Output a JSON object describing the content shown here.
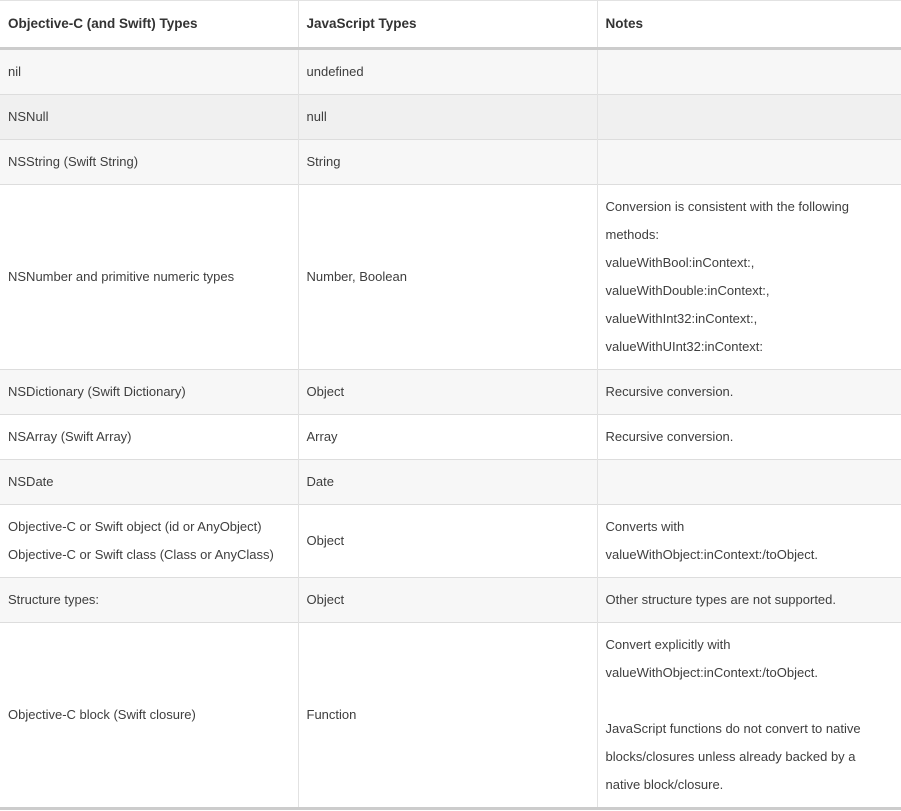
{
  "colors": {
    "header_bg": "#ffffff",
    "header_text": "#333333",
    "body_text": "#3e3e3e",
    "row_shaded_bg": "#f7f7f7",
    "row_highlighted_bg": "#f0f0f0",
    "row_plain_bg": "#ffffff",
    "grid_line": "#e2e2e2",
    "row_divider": "#dddddd",
    "header_border": "#cccccc",
    "table_bottom_border": "#cccccc"
  },
  "table": {
    "columns": [
      {
        "label": "Objective-C (and Swift) Types"
      },
      {
        "label": "JavaScript Types"
      },
      {
        "label": "Notes"
      }
    ],
    "rows": [
      {
        "state": "shaded",
        "objc": [
          "nil"
        ],
        "js": "undefined",
        "notes": []
      },
      {
        "state": "highlighted",
        "objc": [
          "NSNull"
        ],
        "js": "null",
        "notes": []
      },
      {
        "state": "shaded",
        "objc": [
          "NSString (Swift String)"
        ],
        "js": "String",
        "notes": []
      },
      {
        "state": "plain",
        "objc": [
          "NSNumber and primitive numeric types"
        ],
        "js": "Number, Boolean",
        "notes": [
          [
            "Conversion is consistent with the following methods:",
            "valueWithBool:inContext:,",
            "valueWithDouble:inContext:,",
            "valueWithInt32:inContext:,",
            "valueWithUInt32:inContext:"
          ]
        ]
      },
      {
        "state": "shaded",
        "objc": [
          "NSDictionary (Swift Dictionary)"
        ],
        "js": "Object",
        "notes": [
          [
            "Recursive conversion."
          ]
        ]
      },
      {
        "state": "plain",
        "objc": [
          "NSArray (Swift Array)"
        ],
        "js": "Array",
        "notes": [
          [
            "Recursive conversion."
          ]
        ]
      },
      {
        "state": "shaded",
        "objc": [
          "NSDate"
        ],
        "js": "Date",
        "notes": []
      },
      {
        "state": "plain",
        "objc": [
          "Objective-C or Swift object (id or AnyObject)",
          "Objective-C or Swift class (Class or AnyClass)"
        ],
        "js": "Object",
        "notes": [
          [
            "Converts with valueWithObject:inContext:/toObject."
          ]
        ]
      },
      {
        "state": "shaded",
        "objc": [
          "Structure types:"
        ],
        "js": "Object",
        "notes": [
          [
            "Other structure types are not supported."
          ]
        ]
      },
      {
        "state": "plain",
        "objc": [
          "Objective-C block (Swift closure)"
        ],
        "js": "Function",
        "notes": [
          [
            "Convert explicitly with valueWithObject:inContext:/toObject."
          ],
          [
            "JavaScript functions do not convert to native blocks/closures unless already backed by a native block/closure."
          ]
        ]
      }
    ]
  }
}
